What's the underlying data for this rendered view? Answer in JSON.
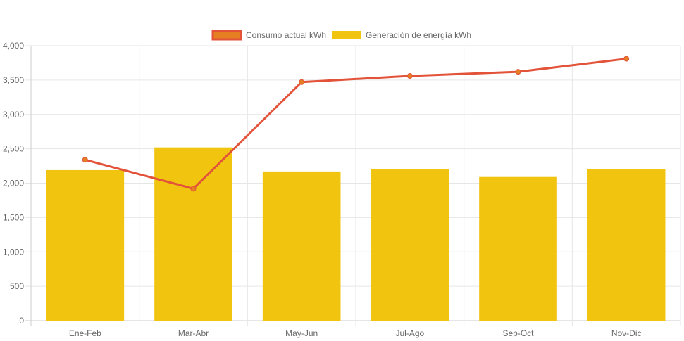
{
  "chart_data": {
    "type": "bar",
    "categories": [
      "Ene-Feb",
      "Mar-Abr",
      "May-Jun",
      "Jul-Ago",
      "Sep-Oct",
      "Nov-Dic"
    ],
    "series": [
      {
        "name": "Consumo actual kWh",
        "type": "line",
        "color": "#e2533a",
        "point_color": "#e67e22",
        "values": [
          2340,
          1920,
          3470,
          3560,
          3620,
          3810
        ]
      },
      {
        "name": "Generación de energía kWh",
        "type": "bar",
        "color": "#f1c40f",
        "values": [
          2190,
          2520,
          2170,
          2200,
          2090,
          2200
        ]
      }
    ],
    "yticks": [
      "0",
      "500",
      "1,000",
      "1,500",
      "2,000",
      "2,500",
      "3,000",
      "3,500",
      "4,000"
    ],
    "ylim": [
      0,
      4000
    ],
    "grid": true,
    "legend": "top-center"
  }
}
